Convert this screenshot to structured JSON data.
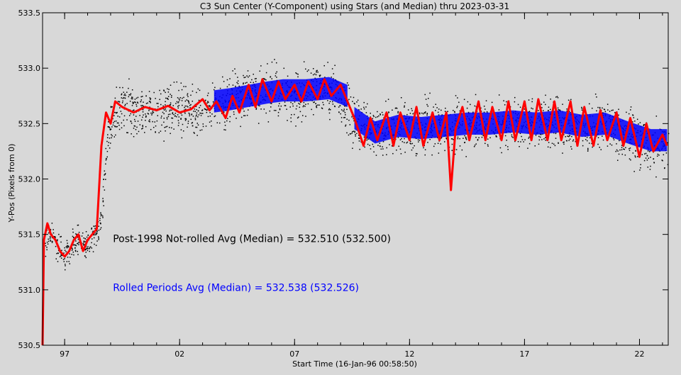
{
  "chart_data": {
    "type": "scatter",
    "title": "C3 Sun Center (Y-Component) using Stars (and Median) thru 2023-03-31",
    "xlabel": "Start Time (16-Jan-96 00:58:50)",
    "ylabel": "Y-Pos (Pixels from 0)",
    "xlim": [
      1996.04,
      2023.25
    ],
    "ylim": [
      530.5,
      533.5
    ],
    "x_ticks": [
      {
        "value": 1997,
        "label": "97"
      },
      {
        "value": 2002,
        "label": "02"
      },
      {
        "value": 2007,
        "label": "07"
      },
      {
        "value": 2012,
        "label": "12"
      },
      {
        "value": 2017,
        "label": "17"
      },
      {
        "value": 2022,
        "label": "22"
      }
    ],
    "y_ticks": [
      {
        "value": 530.5,
        "label": "530.5"
      },
      {
        "value": 531.0,
        "label": "531.0"
      },
      {
        "value": 531.5,
        "label": "531.5"
      },
      {
        "value": 532.0,
        "label": "532.0"
      },
      {
        "value": 532.5,
        "label": "532.5"
      },
      {
        "value": 533.0,
        "label": "533.0"
      },
      {
        "value": 533.5,
        "label": "533.5"
      }
    ],
    "series": [
      {
        "color": "#000000",
        "style": "dots",
        "points": [
          [
            1996.1,
            531.4
          ],
          [
            1996.3,
            531.55
          ],
          [
            1996.5,
            531.45
          ],
          [
            1996.8,
            531.35
          ],
          [
            1997.0,
            531.3
          ],
          [
            1997.3,
            531.4
          ],
          [
            1997.6,
            531.45
          ],
          [
            1997.9,
            531.4
          ],
          [
            1998.2,
            531.5
          ],
          [
            1998.5,
            531.55
          ],
          [
            1999.0,
            532.6
          ],
          [
            1999.5,
            532.65
          ],
          [
            2000.0,
            532.6
          ],
          [
            2000.5,
            532.65
          ],
          [
            2001.0,
            532.6
          ],
          [
            2001.5,
            532.65
          ],
          [
            2002.0,
            532.6
          ],
          [
            2002.5,
            532.62
          ],
          [
            2003.0,
            532.6
          ],
          [
            2003.5,
            532.65
          ],
          [
            2004.0,
            532.7
          ],
          [
            2004.5,
            532.72
          ],
          [
            2005.0,
            532.75
          ],
          [
            2005.5,
            532.78
          ],
          [
            2006.0,
            532.8
          ],
          [
            2006.5,
            532.78
          ],
          [
            2007.0,
            532.75
          ],
          [
            2007.5,
            532.8
          ],
          [
            2008.0,
            532.78
          ],
          [
            2008.5,
            532.8
          ],
          [
            2009.0,
            532.75
          ],
          [
            2009.5,
            532.55
          ],
          [
            2010.0,
            532.45
          ],
          [
            2010.5,
            532.4
          ],
          [
            2011.0,
            532.45
          ],
          [
            2011.5,
            532.5
          ],
          [
            2012.0,
            532.48
          ],
          [
            2012.5,
            532.45
          ],
          [
            2013.0,
            532.5
          ],
          [
            2013.5,
            532.45
          ],
          [
            2014.0,
            532.5
          ],
          [
            2014.5,
            532.48
          ],
          [
            2015.0,
            532.52
          ],
          [
            2015.5,
            532.48
          ],
          [
            2016.0,
            532.5
          ],
          [
            2016.5,
            532.52
          ],
          [
            2017.0,
            532.5
          ],
          [
            2017.5,
            532.48
          ],
          [
            2018.0,
            532.5
          ],
          [
            2018.5,
            532.52
          ],
          [
            2019.0,
            532.5
          ],
          [
            2019.5,
            532.45
          ],
          [
            2020.0,
            532.48
          ],
          [
            2020.5,
            532.5
          ],
          [
            2021.0,
            532.45
          ],
          [
            2021.5,
            532.4
          ],
          [
            2022.0,
            532.35
          ],
          [
            2022.5,
            532.3
          ],
          [
            2023.0,
            532.35
          ]
        ]
      },
      {
        "color": "#0000ff",
        "style": "band",
        "segments": [
          [
            [
              2003.5,
              532.7
            ],
            [
              2004.2,
              532.72
            ],
            [
              2005.0,
              532.75
            ],
            [
              2005.8,
              532.78
            ],
            [
              2006.5,
              532.8
            ],
            [
              2007.5,
              532.8
            ],
            [
              2008.5,
              532.82
            ],
            [
              2009.3,
              532.75
            ]
          ],
          [
            [
              2009.6,
              532.55
            ],
            [
              2010.5,
              532.42
            ],
            [
              2011.5,
              532.48
            ],
            [
              2012.5,
              532.46
            ],
            [
              2013.5,
              532.48
            ],
            [
              2014.5,
              532.5
            ],
            [
              2015.5,
              532.5
            ],
            [
              2016.5,
              532.52
            ],
            [
              2017.5,
              532.5
            ],
            [
              2018.5,
              532.52
            ],
            [
              2019.5,
              532.48
            ],
            [
              2020.5,
              532.5
            ],
            [
              2021.5,
              532.42
            ],
            [
              2022.5,
              532.35
            ],
            [
              2023.2,
              532.35
            ]
          ]
        ]
      },
      {
        "color": "#ff0000",
        "style": "line",
        "points": [
          [
            1996.04,
            530.5
          ],
          [
            1996.1,
            531.45
          ],
          [
            1996.25,
            531.6
          ],
          [
            1996.4,
            531.5
          ],
          [
            1996.6,
            531.45
          ],
          [
            1996.8,
            531.35
          ],
          [
            1997.0,
            531.3
          ],
          [
            1997.2,
            531.35
          ],
          [
            1997.4,
            531.45
          ],
          [
            1997.6,
            531.5
          ],
          [
            1997.8,
            531.35
          ],
          [
            1998.0,
            531.45
          ],
          [
            1998.2,
            531.5
          ],
          [
            1998.4,
            531.55
          ],
          [
            1998.6,
            532.3
          ],
          [
            1998.8,
            532.6
          ],
          [
            1999.0,
            532.5
          ],
          [
            1999.2,
            532.7
          ],
          [
            1999.5,
            532.65
          ],
          [
            2000.0,
            532.6
          ],
          [
            2000.5,
            532.65
          ],
          [
            2001.0,
            532.62
          ],
          [
            2001.5,
            532.66
          ],
          [
            2002.0,
            532.6
          ],
          [
            2002.5,
            532.63
          ],
          [
            2003.0,
            532.72
          ],
          [
            2003.3,
            532.62
          ],
          [
            2003.6,
            532.7
          ],
          [
            2004.0,
            532.55
          ],
          [
            2004.3,
            532.75
          ],
          [
            2004.6,
            532.6
          ],
          [
            2005.0,
            532.85
          ],
          [
            2005.3,
            532.65
          ],
          [
            2005.6,
            532.9
          ],
          [
            2006.0,
            532.7
          ],
          [
            2006.3,
            532.88
          ],
          [
            2006.6,
            532.72
          ],
          [
            2007.0,
            532.85
          ],
          [
            2007.3,
            532.7
          ],
          [
            2007.6,
            532.88
          ],
          [
            2008.0,
            532.72
          ],
          [
            2008.3,
            532.9
          ],
          [
            2008.6,
            532.75
          ],
          [
            2009.0,
            532.85
          ],
          [
            2009.3,
            532.7
          ],
          [
            2009.6,
            532.55
          ],
          [
            2010.0,
            532.3
          ],
          [
            2010.3,
            532.55
          ],
          [
            2010.6,
            532.35
          ],
          [
            2011.0,
            532.6
          ],
          [
            2011.3,
            532.3
          ],
          [
            2011.6,
            532.6
          ],
          [
            2012.0,
            532.35
          ],
          [
            2012.3,
            532.65
          ],
          [
            2012.6,
            532.3
          ],
          [
            2013.0,
            532.6
          ],
          [
            2013.3,
            532.35
          ],
          [
            2013.6,
            532.6
          ],
          [
            2013.8,
            531.9
          ],
          [
            2014.0,
            532.45
          ],
          [
            2014.3,
            532.65
          ],
          [
            2014.6,
            532.35
          ],
          [
            2015.0,
            532.7
          ],
          [
            2015.3,
            532.35
          ],
          [
            2015.6,
            532.65
          ],
          [
            2016.0,
            532.35
          ],
          [
            2016.3,
            532.7
          ],
          [
            2016.6,
            532.35
          ],
          [
            2017.0,
            532.7
          ],
          [
            2017.3,
            532.35
          ],
          [
            2017.6,
            532.72
          ],
          [
            2018.0,
            532.35
          ],
          [
            2018.3,
            532.7
          ],
          [
            2018.6,
            532.35
          ],
          [
            2019.0,
            532.7
          ],
          [
            2019.3,
            532.3
          ],
          [
            2019.6,
            532.65
          ],
          [
            2020.0,
            532.3
          ],
          [
            2020.3,
            532.62
          ],
          [
            2020.6,
            532.35
          ],
          [
            2021.0,
            532.6
          ],
          [
            2021.3,
            532.3
          ],
          [
            2021.6,
            532.55
          ],
          [
            2022.0,
            532.2
          ],
          [
            2022.3,
            532.5
          ],
          [
            2022.6,
            532.25
          ],
          [
            2023.0,
            532.4
          ],
          [
            2023.2,
            532.3
          ]
        ]
      }
    ],
    "annotations": [
      {
        "text": "Post-1998 Not-rolled Avg (Median) = 532.510 (532.500)",
        "color": "#000000",
        "x": 1999.1,
        "y": 531.43
      },
      {
        "text": "Rolled Periods Avg (Median) = 532.538 (532.526)",
        "color": "#0000ff",
        "x": 1999.1,
        "y": 530.99
      }
    ]
  }
}
